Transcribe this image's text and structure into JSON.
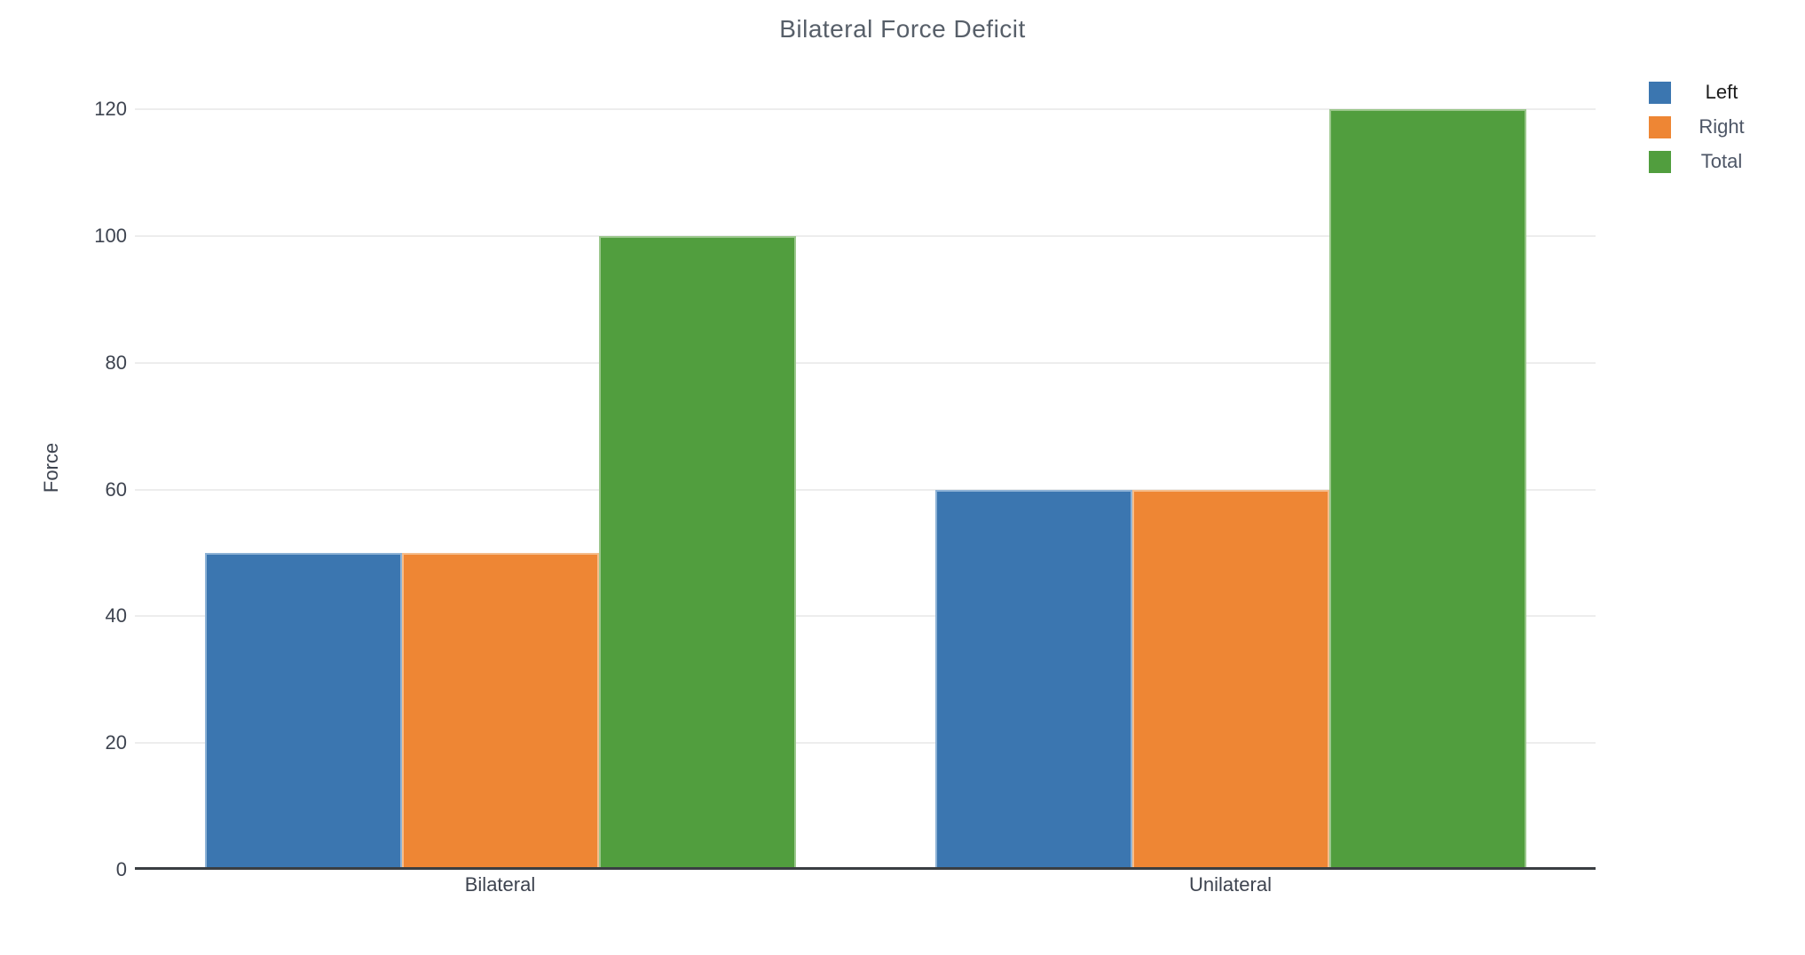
{
  "title": "Bilateral Force Deficit",
  "colors": {
    "background": "#ffffff",
    "grid": "#ededed",
    "axis_line": "#3a3e42",
    "title_text": "#575f69",
    "tick_text": "#3e4450",
    "category_text": "#3e4450"
  },
  "chart_data": {
    "type": "bar",
    "title": "Bilateral Force Deficit",
    "categories": [
      "Bilateral",
      "Unilateral"
    ],
    "series": [
      {
        "name": "Left",
        "values": [
          50,
          60
        ],
        "color": "#3b76b0",
        "edge": "#8db2d6"
      },
      {
        "name": "Right",
        "values": [
          50,
          60
        ],
        "color": "#ee8634",
        "edge": "#f5bd8b"
      },
      {
        "name": "Total",
        "values": [
          100,
          120
        ],
        "color": "#519e3e",
        "edge": "#9bc78c"
      }
    ],
    "xlabel": "",
    "ylabel": "Force",
    "ylim": [
      0,
      120
    ],
    "yticks": [
      0,
      20,
      40,
      60,
      80,
      100,
      120
    ],
    "grid": "horizontal",
    "legend_position": "top-right"
  },
  "legend": {
    "items": [
      {
        "label": "Left",
        "swatch": "#3b76b0",
        "text_color": "#1c1c1c"
      },
      {
        "label": "Right",
        "swatch": "#ee8634",
        "text_color": "#4d5666"
      },
      {
        "label": "Total",
        "swatch": "#519e3e",
        "text_color": "#4d5666"
      }
    ]
  }
}
